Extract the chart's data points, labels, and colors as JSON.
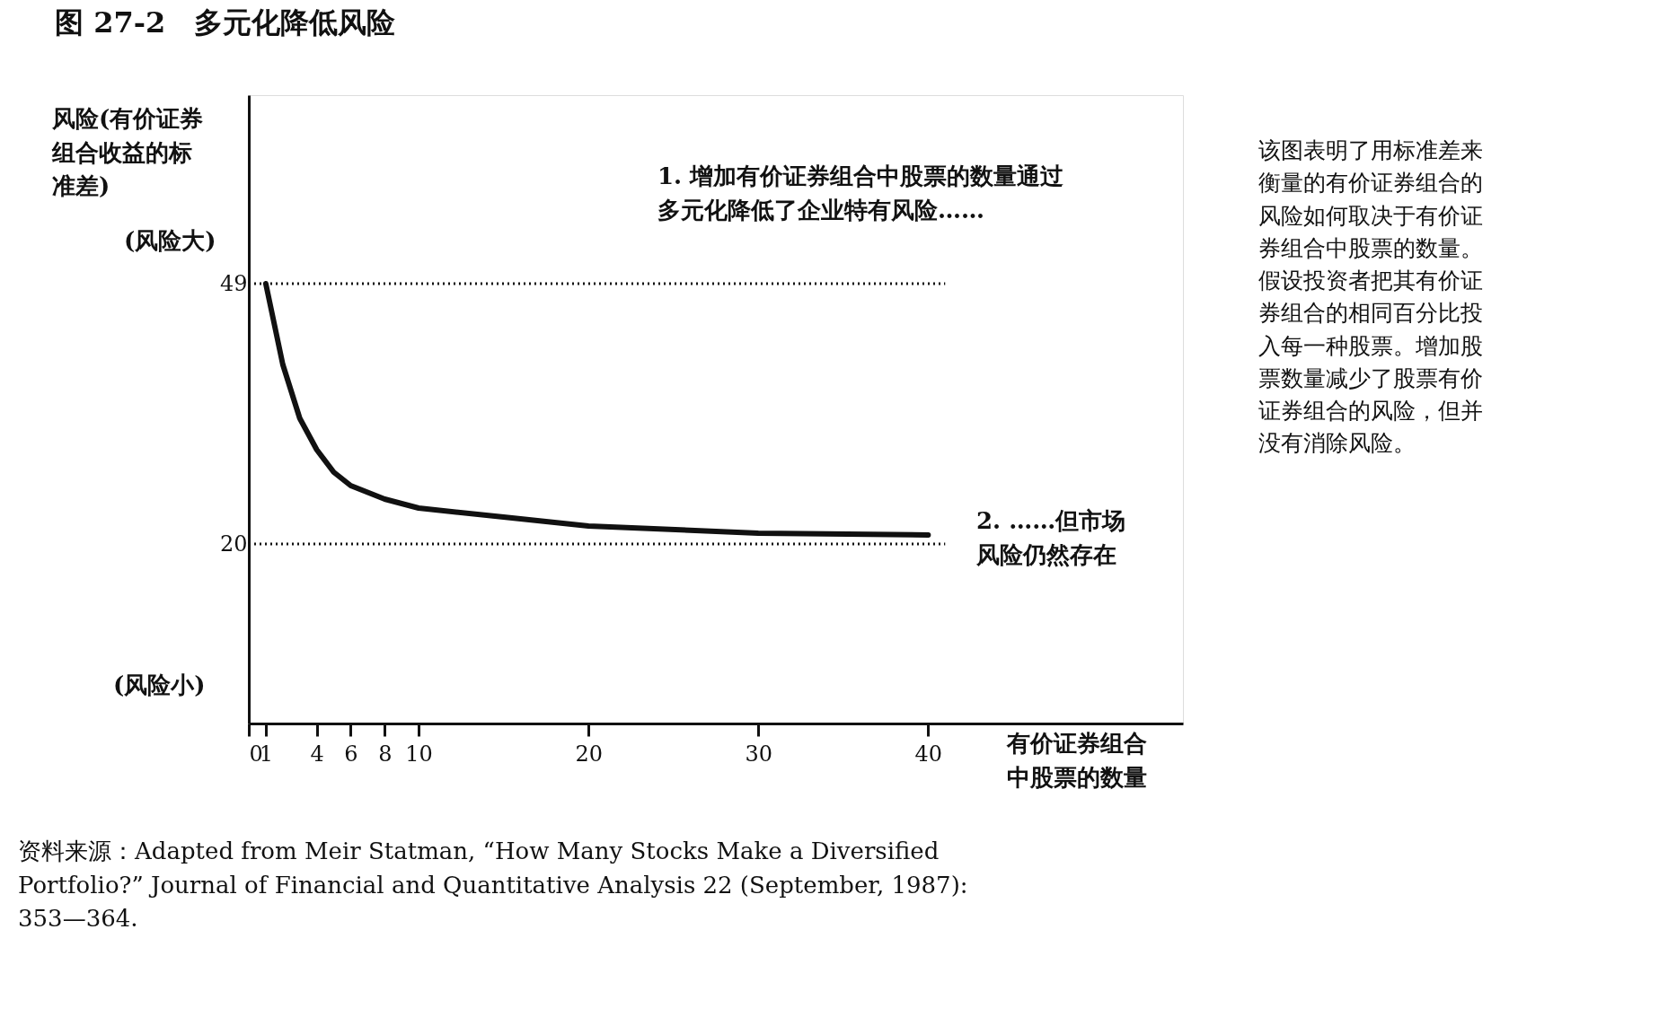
{
  "chart_data": {
    "type": "line",
    "title": "图 27-2　多元化降低风险",
    "xlabel": "有价证券组合中股票的数量",
    "ylabel": "风险(有价证券组合收益的标准差)",
    "x": [
      1,
      2,
      3,
      4,
      5,
      6,
      8,
      10,
      15,
      20,
      30,
      40
    ],
    "series": [
      {
        "color": "#111111",
        "values": [
          49,
          40,
          34,
          30.5,
          28,
          26.5,
          25,
          24,
          23,
          22,
          21.2,
          21
        ]
      }
    ],
    "xlim": [
      0,
      55
    ],
    "ylim": [
      0,
      70
    ],
    "xticks": [
      0,
      1,
      4,
      6,
      8,
      10,
      20,
      30,
      40
    ],
    "yticks": [
      20,
      49
    ],
    "ref_lines": [
      {
        "axis": "y",
        "value": 49,
        "line_style": "dotted",
        "color": "#111111"
      },
      {
        "axis": "y",
        "value": 20,
        "line_style": "dotted",
        "color": "#111111"
      }
    ],
    "annotations": [
      "(风险大)",
      "(风险小)",
      "1. 增加有价证券组合中股票的数量通过多元化降低了企业特有风险……",
      "2. ……但市场风险仍然存在",
      "该图表明了用标准差来衡量的有价证券组合的风险如何取决于有价证券组合中股票的数量。假设投资者把其有价证券组合的相同百分比投入每一种股票。增加股票数量减少了股票有价证券组合的风险，但并没有消除风险。",
      "资料来源：Adapted from Meir Statman, “How Many Stocks Make a Diversified\nPortfolio?” Journal of Financial and Quantitative Analysis 22 (September, 1987):\n353—364."
    ],
    "grid": false,
    "legend": false,
    "marker": "none",
    "line_style": "solid"
  }
}
